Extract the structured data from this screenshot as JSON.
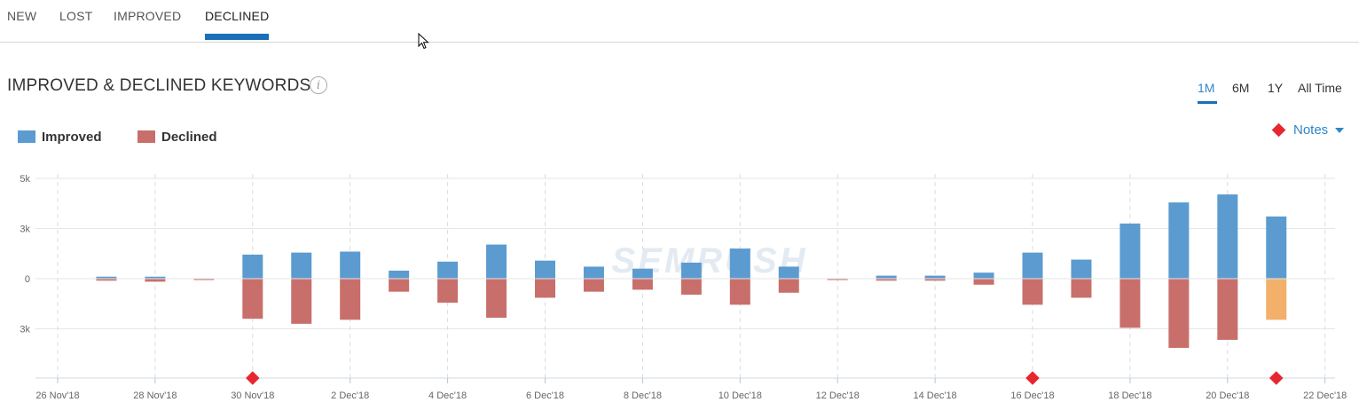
{
  "tabs": [
    {
      "label": "NEW",
      "active": false
    },
    {
      "label": "LOST",
      "active": false
    },
    {
      "label": "IMPROVED",
      "active": false
    },
    {
      "label": "DECLINED",
      "active": true
    }
  ],
  "section": {
    "title": "IMPROVED & DECLINED KEYWORDS",
    "info_icon": "info-icon"
  },
  "time_ranges": [
    {
      "label": "1M",
      "active": true
    },
    {
      "label": "6M",
      "active": false
    },
    {
      "label": "1Y",
      "active": false
    },
    {
      "label": "All Time",
      "active": false
    }
  ],
  "notes": {
    "label": "Notes",
    "icon": "diamond-icon",
    "caret": "chevron-down-icon",
    "color": "#e8262f"
  },
  "legend": [
    {
      "label": "Improved",
      "color": "#5b9bd0"
    },
    {
      "label": "Declined",
      "color": "#c86f6c"
    }
  ],
  "colors": {
    "improved": "#5b9bd0",
    "declined": "#c86f6c",
    "highlight": "#f2b06b",
    "note_marker": "#e8262f",
    "accent": "#1a6fb8"
  },
  "chart_data": {
    "type": "bar",
    "title": "IMPROVED & DECLINED KEYWORDS",
    "x_tick_labels": [
      "26 Nov'18",
      "28 Nov'18",
      "30 Nov'18",
      "2 Dec'18",
      "4 Dec'18",
      "6 Dec'18",
      "8 Dec'18",
      "10 Dec'18",
      "12 Dec'18",
      "14 Dec'18",
      "16 Dec'18",
      "18 Dec'18",
      "20 Dec'18",
      "22 Dec'18"
    ],
    "y_tick_labels": [
      "5k",
      "3k",
      "0",
      "3k"
    ],
    "y_ticks": [
      5000,
      2500,
      0,
      -2500
    ],
    "ylim": [
      -5000,
      5000
    ],
    "dates": [
      "27 Nov'18",
      "28 Nov'18",
      "29 Nov'18",
      "30 Nov'18",
      "1 Dec'18",
      "2 Dec'18",
      "3 Dec'18",
      "4 Dec'18",
      "5 Dec'18",
      "6 Dec'18",
      "7 Dec'18",
      "8 Dec'18",
      "9 Dec'18",
      "10 Dec'18",
      "11 Dec'18",
      "12 Dec'18",
      "13 Dec'18",
      "14 Dec'18",
      "15 Dec'18",
      "16 Dec'18",
      "17 Dec'18",
      "18 Dec'18",
      "19 Dec'18",
      "20 Dec'18",
      "21 Dec'18"
    ],
    "series": [
      {
        "name": "Improved",
        "values": [
          100,
          100,
          0,
          1200,
          1300,
          1350,
          400,
          850,
          1700,
          900,
          600,
          500,
          800,
          1500,
          600,
          0,
          150,
          150,
          300,
          1300,
          950,
          2750,
          3800,
          4200,
          3100
        ]
      },
      {
        "name": "Declined",
        "values": [
          -100,
          -150,
          -50,
          -2000,
          -2250,
          -2050,
          -650,
          -1200,
          -1950,
          -950,
          -650,
          -550,
          -800,
          -1300,
          -700,
          -50,
          -100,
          -100,
          -300,
          -1300,
          -950,
          -2450,
          -3450,
          -3050,
          -2050
        ]
      }
    ],
    "highlighted_declined_index": 24,
    "note_dates": [
      "30 Nov'18",
      "16 Dec'18",
      "21 Dec'18"
    ],
    "grid": true,
    "legend_position": "top-left",
    "watermark": "SEMRUSH"
  }
}
